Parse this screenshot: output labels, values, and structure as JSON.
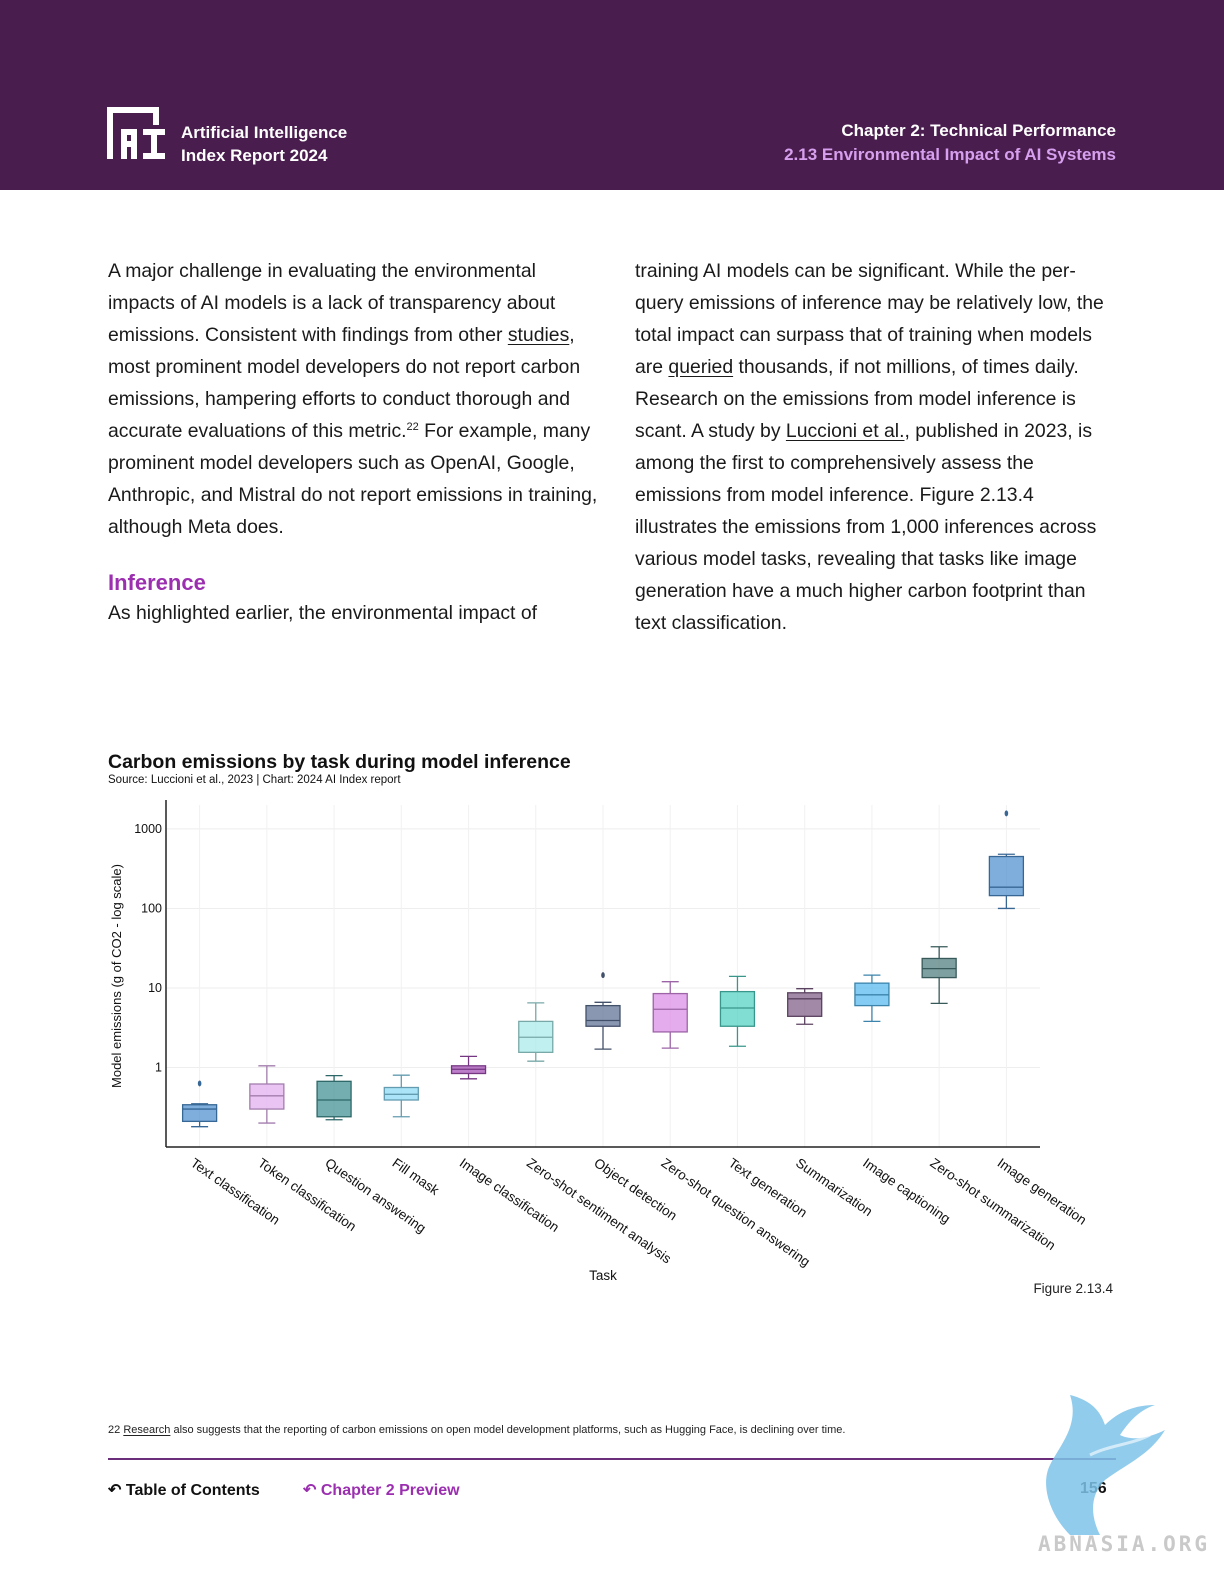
{
  "header": {
    "report_line1": "Artificial Intelligence",
    "report_line2": "Index Report 2024",
    "chapter": "Chapter 2: Technical Performance",
    "section": "2.13 Environmental Impact of AI Systems",
    "logo_icon": "ai-index-logo"
  },
  "body": {
    "left_paragraph": {
      "t1": "A major challenge in evaluating the environmental impacts of AI models is a lack of transparency about emissions. Consistent with findings from other ",
      "link1": "studies",
      "t2": ", most prominent model developers do not report carbon emissions, hampering efforts to conduct thorough and accurate evaluations of this metric.",
      "sup": "22",
      "t3": " For example, many prominent model developers such as OpenAI, Google, Anthropic, and Mistral do not report emissions in training, although Meta does."
    },
    "subheading": "Inference",
    "left_paragraph2": "As highlighted earlier, the environmental impact of",
    "right_paragraph": {
      "t1": "training AI models can be significant. While the per-query emissions of inference may be relatively low, the total impact can surpass that of training when models are ",
      "link1": "queried",
      "t2": " thousands, if not millions, of times daily. Research on the emissions from model inference is scant. A study by ",
      "link2": "Luccioni et al.",
      "t3": ", published in 2023, is among the first to comprehensively assess the emissions from model inference. Figure 2.13.4 illustrates the emissions from 1,000 inferences across various model tasks, revealing that tasks like image generation have a much higher carbon footprint than text classification."
    }
  },
  "chart_data": {
    "type": "box",
    "title": "Carbon emissions by task during model inference",
    "source": "Source: Luccioni et al., 2023 | Chart: 2024 AI Index report",
    "xlabel": "Task",
    "ylabel": "Model emissions (g of CO2 - log scale)",
    "yscale": "log",
    "ylim": [
      0.1,
      2000
    ],
    "yticks": [
      1,
      10,
      100,
      1000
    ],
    "ytick_labels": [
      "1",
      "10",
      "100",
      "1000"
    ],
    "grid": true,
    "series": [
      {
        "task": "Text classification",
        "color": "#4d8fcf",
        "min": 0.18,
        "q1": 0.21,
        "median": 0.3,
        "q3": 0.34,
        "max": 0.35,
        "outliers": [
          0.63
        ]
      },
      {
        "task": "Token classification",
        "color": "#e2aef0",
        "min": 0.2,
        "q1": 0.3,
        "median": 0.44,
        "q3": 0.62,
        "max": 1.05,
        "outliers": []
      },
      {
        "task": "Question answering",
        "color": "#3f8f91",
        "min": 0.22,
        "q1": 0.24,
        "median": 0.39,
        "q3": 0.67,
        "max": 0.79,
        "outliers": []
      },
      {
        "task": "Fill mask",
        "color": "#8ad8f5",
        "min": 0.24,
        "q1": 0.39,
        "median": 0.46,
        "q3": 0.56,
        "max": 0.8,
        "outliers": []
      },
      {
        "task": "Image classification",
        "color": "#a24bb4",
        "min": 0.72,
        "q1": 0.84,
        "median": 0.95,
        "q3": 1.05,
        "max": 1.38,
        "outliers": []
      },
      {
        "task": "Zero-shot sentiment analysis",
        "color": "#a8eaea",
        "min": 1.2,
        "q1": 1.55,
        "median": 2.4,
        "q3": 3.8,
        "max": 6.5,
        "outliers": []
      },
      {
        "task": "Object detection",
        "color": "#5d6f93",
        "min": 1.7,
        "q1": 3.3,
        "median": 3.9,
        "q3": 6.0,
        "max": 6.6,
        "outliers": [
          14.5
        ]
      },
      {
        "task": "Zero-shot question answering",
        "color": "#d98be6",
        "min": 1.75,
        "q1": 2.8,
        "median": 5.4,
        "q3": 8.5,
        "max": 12.0,
        "outliers": []
      },
      {
        "task": "Text generation",
        "color": "#4fd1c0",
        "min": 1.85,
        "q1": 3.3,
        "median": 5.6,
        "q3": 9.0,
        "max": 14.0,
        "outliers": []
      },
      {
        "task": "Summarization",
        "color": "#7e5b86",
        "min": 3.5,
        "q1": 4.4,
        "median": 7.3,
        "q3": 8.7,
        "max": 9.8,
        "outliers": []
      },
      {
        "task": "Image captioning",
        "color": "#54b8ee",
        "min": 3.8,
        "q1": 6.0,
        "median": 8.2,
        "q3": 11.5,
        "max": 14.5,
        "outliers": []
      },
      {
        "task": "Zero-shot summarization",
        "color": "#4e7c7c",
        "min": 6.4,
        "q1": 13.5,
        "median": 17.5,
        "q3": 23.5,
        "max": 33.0,
        "outliers": []
      },
      {
        "task": "Image generation",
        "color": "#4f8fcf",
        "min": 100,
        "q1": 145,
        "median": 185,
        "q3": 450,
        "max": 480,
        "outliers": [
          1570
        ]
      }
    ]
  },
  "figure_label": "Figure 2.13.4",
  "footnote": {
    "number": "22",
    "link": "Research",
    "text": " also suggests that the reporting of carbon emissions on open model development platforms, such as Hugging Face, is declining over time."
  },
  "footer": {
    "toc_label": "Table of Contents",
    "preview_label": "Chapter 2 Preview",
    "page_number": "156",
    "back_icon": "return-arrow-icon"
  },
  "watermark": {
    "text": "ABNASIA.ORG",
    "icon": "winged-lion-icon"
  }
}
